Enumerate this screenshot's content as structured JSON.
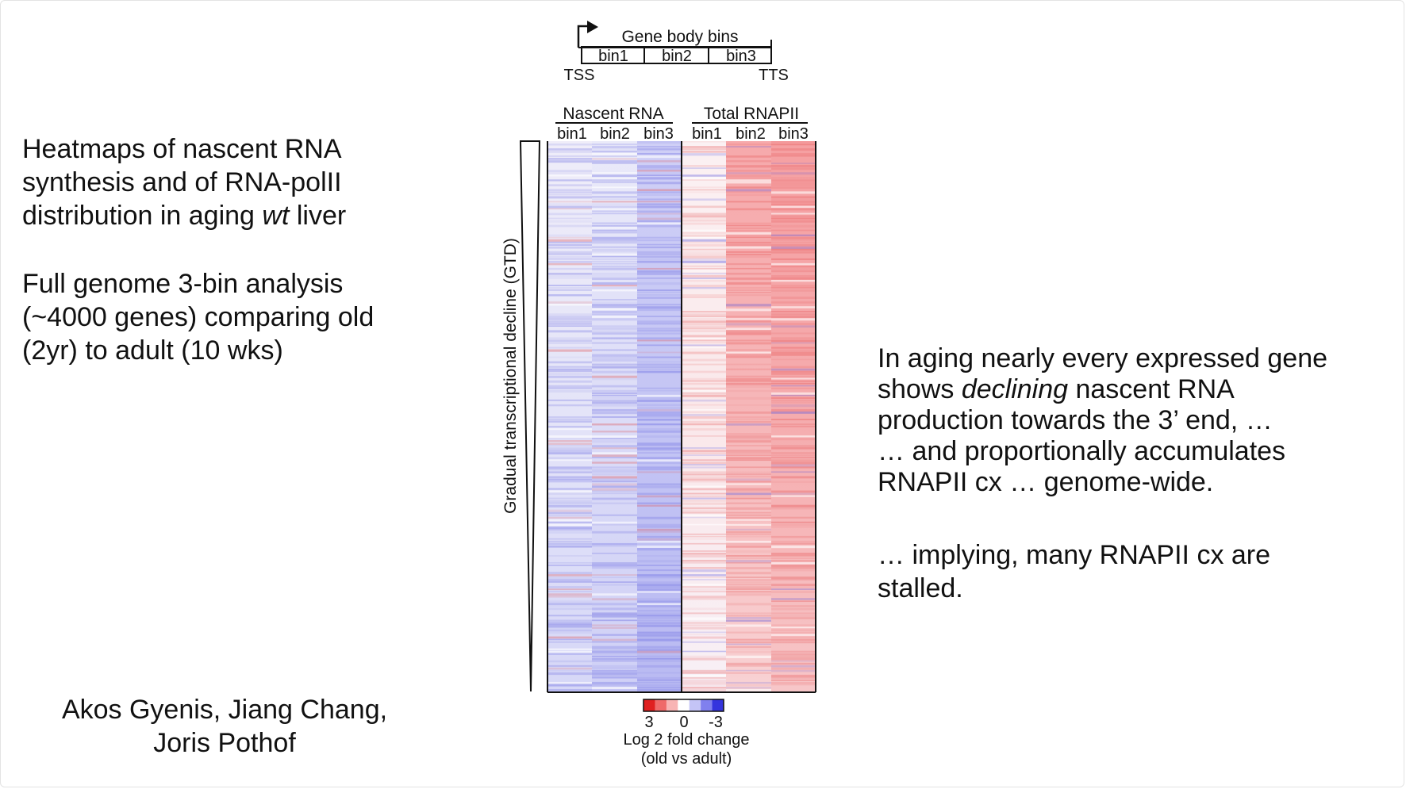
{
  "left_text": {
    "title_lines": [
      "Heatmaps of nascent RNA",
      "synthesis and of RNA-polII"
    ],
    "title_line3_pre": "distribution in aging ",
    "title_line3_italic": "wt",
    "title_line3_post": " liver",
    "analysis_lines": [
      "Full genome 3-bin analysis",
      "(~4000 genes) comparing old",
      "(2yr) to adult (10 wks)"
    ]
  },
  "authors": [
    "Akos Gyenis, Jiang Chang,",
    "Joris Pothof"
  ],
  "right_text": {
    "line1": "In aging nearly every expressed gene",
    "line2_pre": "shows ",
    "line2_italic": "declining",
    "line2_post": " nascent RNA",
    "line3": "production towards the 3’ end, …",
    "line4": "… and proportionally accumulates",
    "line5": "RNAPII cx … genome-wide.",
    "implication_lines": [
      "… implying, many RNAPII cx are",
      "stalled."
    ]
  },
  "figure": {
    "schematic": {
      "title": "Gene body bins",
      "bins": [
        "bin1",
        "bin2",
        "bin3"
      ],
      "tss": "TSS",
      "tts": "TTS"
    },
    "groups": [
      {
        "name": "Nascent RNA",
        "bins": [
          "bin1",
          "bin2",
          "bin3"
        ]
      },
      {
        "name": "Total RNAPII",
        "bins": [
          "bin1",
          "bin2",
          "bin3"
        ]
      }
    ],
    "y_axis_label": "Gradual transcriptional decline (GTD)",
    "colorbar": {
      "ticks": [
        "3",
        "0",
        "-3"
      ],
      "label_line1": "Log 2 fold change",
      "label_line2": "(old vs adult)",
      "colors": [
        "#e02020",
        "#ef6a6a",
        "#f8b4b4",
        "#ffffff",
        "#c4c4f6",
        "#8080ee",
        "#3434dd"
      ]
    }
  },
  "chart_data": {
    "type": "heatmap",
    "title": "",
    "rows_description": "genes (~4000), ordered by gradual transcriptional decline",
    "columns": [
      "Nascent RNA bin1",
      "Nascent RNA bin2",
      "Nascent RNA bin3",
      "Total RNAPII bin1",
      "Total RNAPII bin2",
      "Total RNAPII bin3"
    ],
    "mean_log2_fold_change_by_column": [
      -0.3,
      -0.4,
      -0.9,
      0.2,
      0.9,
      1.0
    ],
    "color_scale": {
      "min": -3,
      "max": 3,
      "low_color": "blue",
      "mid_color": "white",
      "high_color": "red"
    },
    "xlabel": "",
    "ylabel": "Gradual transcriptional decline (GTD)"
  }
}
